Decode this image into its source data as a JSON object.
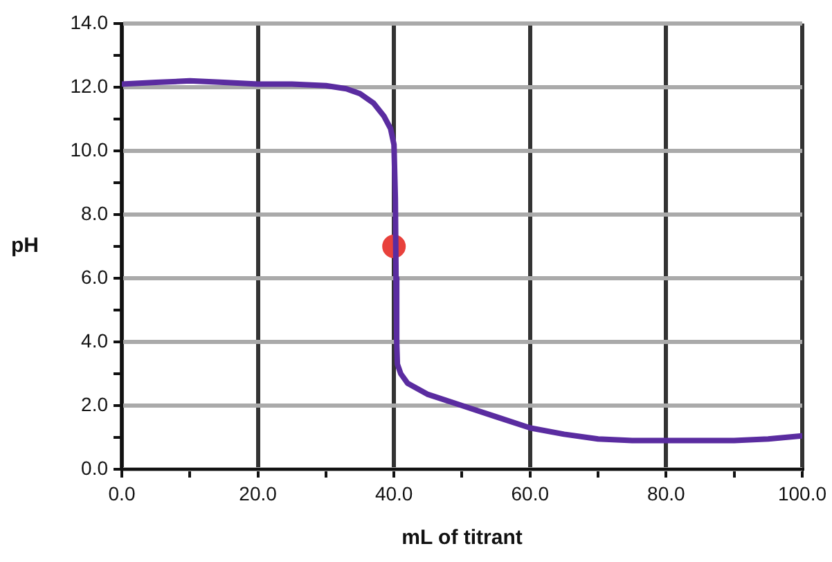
{
  "chart_data": {
    "type": "line",
    "xlabel": "mL of titrant",
    "ylabel": "pH",
    "xlim": [
      0,
      100
    ],
    "ylim": [
      0,
      14
    ],
    "xticks": [
      {
        "value": 0,
        "label": "0.0"
      },
      {
        "value": 10,
        "label": null
      },
      {
        "value": 20,
        "label": "20.0"
      },
      {
        "value": 30,
        "label": null
      },
      {
        "value": 40,
        "label": "40.0"
      },
      {
        "value": 50,
        "label": null
      },
      {
        "value": 60,
        "label": "60.0"
      },
      {
        "value": 70,
        "label": null
      },
      {
        "value": 80,
        "label": "80.0"
      },
      {
        "value": 90,
        "label": null
      },
      {
        "value": 100,
        "label": "100.0"
      }
    ],
    "yticks": [
      {
        "value": 0,
        "label": "0.0"
      },
      {
        "value": 1,
        "label": null
      },
      {
        "value": 2,
        "label": "2.0"
      },
      {
        "value": 3,
        "label": null
      },
      {
        "value": 4,
        "label": "4.0"
      },
      {
        "value": 5,
        "label": null
      },
      {
        "value": 6,
        "label": "6.0"
      },
      {
        "value": 7,
        "label": null
      },
      {
        "value": 8,
        "label": "8.0"
      },
      {
        "value": 9,
        "label": null
      },
      {
        "value": 10,
        "label": "10.0"
      },
      {
        "value": 11,
        "label": null
      },
      {
        "value": 12,
        "label": "12.0"
      },
      {
        "value": 13,
        "label": null
      },
      {
        "value": 14,
        "label": "14.0"
      }
    ],
    "grid": true,
    "legend": false,
    "series": [
      {
        "type": "line",
        "color": "#5a2ca0",
        "marker": "none",
        "x": [
          0,
          5,
          10,
          15,
          20,
          25,
          30,
          33,
          35,
          37,
          38.5,
          39.5,
          40,
          40.2,
          40.3,
          40.4,
          40.5,
          41,
          42,
          45,
          50,
          55,
          60,
          65,
          70,
          75,
          80,
          85,
          90,
          95,
          100
        ],
        "values": [
          12.1,
          12.15,
          12.2,
          12.15,
          12.1,
          12.1,
          12.05,
          11.95,
          11.8,
          11.5,
          11.1,
          10.7,
          10.2,
          8.5,
          6,
          4,
          3.3,
          3.0,
          2.7,
          2.35,
          2.0,
          1.65,
          1.3,
          1.1,
          0.95,
          0.9,
          0.9,
          0.9,
          0.9,
          0.95,
          1.05
        ]
      },
      {
        "type": "scatter",
        "color": "#e8413c",
        "marker": "circle",
        "x": [
          40
        ],
        "values": [
          7
        ]
      }
    ]
  }
}
